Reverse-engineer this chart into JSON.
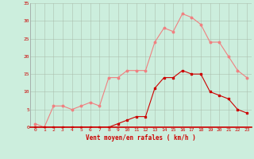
{
  "hours": [
    0,
    1,
    2,
    3,
    4,
    5,
    6,
    7,
    8,
    9,
    10,
    11,
    12,
    13,
    14,
    15,
    16,
    17,
    18,
    19,
    20,
    21,
    22,
    23
  ],
  "rafales": [
    1,
    0,
    6,
    6,
    5,
    6,
    7,
    6,
    14,
    14,
    16,
    16,
    16,
    24,
    28,
    27,
    32,
    31,
    29,
    24,
    24,
    20,
    16,
    14
  ],
  "vent_moyen": [
    0,
    0,
    0,
    0,
    0,
    0,
    0,
    0,
    0,
    1,
    2,
    3,
    3,
    11,
    14,
    14,
    16,
    15,
    15,
    10,
    9,
    8,
    5,
    4
  ],
  "color_rafales": "#f08080",
  "color_vent": "#cc0000",
  "background_color": "#cceedd",
  "grid_color": "#aabbaa",
  "xlabel": "Vent moyen/en rafales ( km/h )",
  "xlabel_color": "#cc0000",
  "tick_color": "#cc0000",
  "ylim": [
    0,
    35
  ],
  "yticks": [
    0,
    5,
    10,
    15,
    20,
    25,
    30,
    35
  ],
  "xticks": [
    0,
    1,
    2,
    3,
    4,
    5,
    6,
    7,
    8,
    9,
    10,
    11,
    12,
    13,
    14,
    15,
    16,
    17,
    18,
    19,
    20,
    21,
    22,
    23
  ]
}
